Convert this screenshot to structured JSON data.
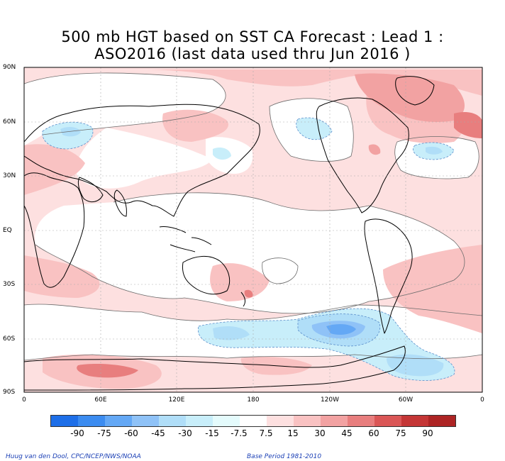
{
  "title_line1": "500 mb HGT based on SST CA Forecast : Lead 1 :",
  "title_line2": "ASO2016 (last data used thru Jun 2016 )",
  "lat_labels": [
    "90N",
    "60N",
    "30N",
    "EQ",
    "30S",
    "60S",
    "90S"
  ],
  "lon_labels": [
    "0",
    "60E",
    "120E",
    "180",
    "120W",
    "60W",
    "0"
  ],
  "colorbar": {
    "labels": [
      "-90",
      "-75",
      "-60",
      "-45",
      "-30",
      "-15",
      "-7.5",
      "7.5",
      "15",
      "30",
      "45",
      "60",
      "75",
      "90"
    ],
    "colors": [
      "#1e6fe8",
      "#3c8cf0",
      "#64a8f5",
      "#8fc2f7",
      "#b0def8",
      "#c8eefa",
      "#e4fbfc",
      "#ffffff",
      "#fde0e0",
      "#f9c2c2",
      "#f2a2a2",
      "#e87e7e",
      "#da5656",
      "#c43636",
      "#ad2424"
    ]
  },
  "credit_left": "Huug van den Dool, CPC/NCEP/NWS/NOAA",
  "credit_right": "Base Period 1981-2010"
}
